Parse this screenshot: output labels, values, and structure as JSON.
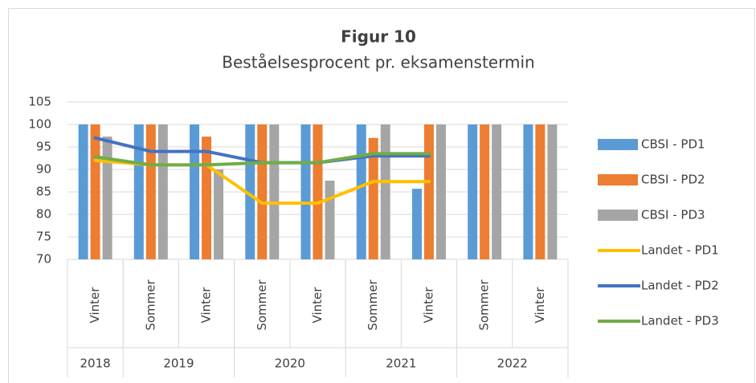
{
  "chart_data": {
    "type": "bar",
    "title": "Figur 10",
    "subtitle": "Beståelsesprocent pr. eksamenstermin",
    "categories": [
      "Vinter",
      "Sommer",
      "Vinter",
      "Sommer",
      "Vinter",
      "Sommer",
      "Vinter",
      "Sommer",
      "Vinter"
    ],
    "category_groups": [
      {
        "label": "2018",
        "size": 1
      },
      {
        "label": "2019",
        "size": 2
      },
      {
        "label": "2020",
        "size": 2
      },
      {
        "label": "2021",
        "size": 2
      },
      {
        "label": "2022",
        "size": 2
      }
    ],
    "ylim": [
      70,
      105
    ],
    "yticks": [
      70,
      75,
      80,
      85,
      90,
      95,
      100,
      105
    ],
    "grid": true,
    "legend": "right",
    "series": [
      {
        "name": "CBSI - PD1",
        "type": "bar",
        "color": "#5b9bd5",
        "values": [
          100,
          100,
          100,
          100,
          100,
          100,
          85.7,
          100,
          100
        ]
      },
      {
        "name": "CBSI - PD2",
        "type": "bar",
        "color": "#ed7d31",
        "values": [
          100,
          100,
          97.3,
          100,
          100,
          97,
          100,
          100,
          100
        ]
      },
      {
        "name": "CBSI - PD3",
        "type": "bar",
        "color": "#a5a5a5",
        "values": [
          97.3,
          100,
          90,
          100,
          87.5,
          100,
          100,
          100,
          100
        ]
      },
      {
        "name": "Landet - PD1",
        "type": "line",
        "color": "#ffc000",
        "values": [
          92,
          91,
          91,
          82.5,
          82.5,
          87.3,
          87.3,
          null,
          null
        ]
      },
      {
        "name": "Landet - PD2",
        "type": "line",
        "color": "#4472c4",
        "values": [
          97,
          94,
          94,
          91.5,
          91.5,
          93,
          93,
          null,
          null
        ]
      },
      {
        "name": "Landet - PD3",
        "type": "line",
        "color": "#70ad47",
        "values": [
          92.8,
          91,
          91,
          91.5,
          91.5,
          93.5,
          93.5,
          null,
          null
        ]
      }
    ]
  }
}
